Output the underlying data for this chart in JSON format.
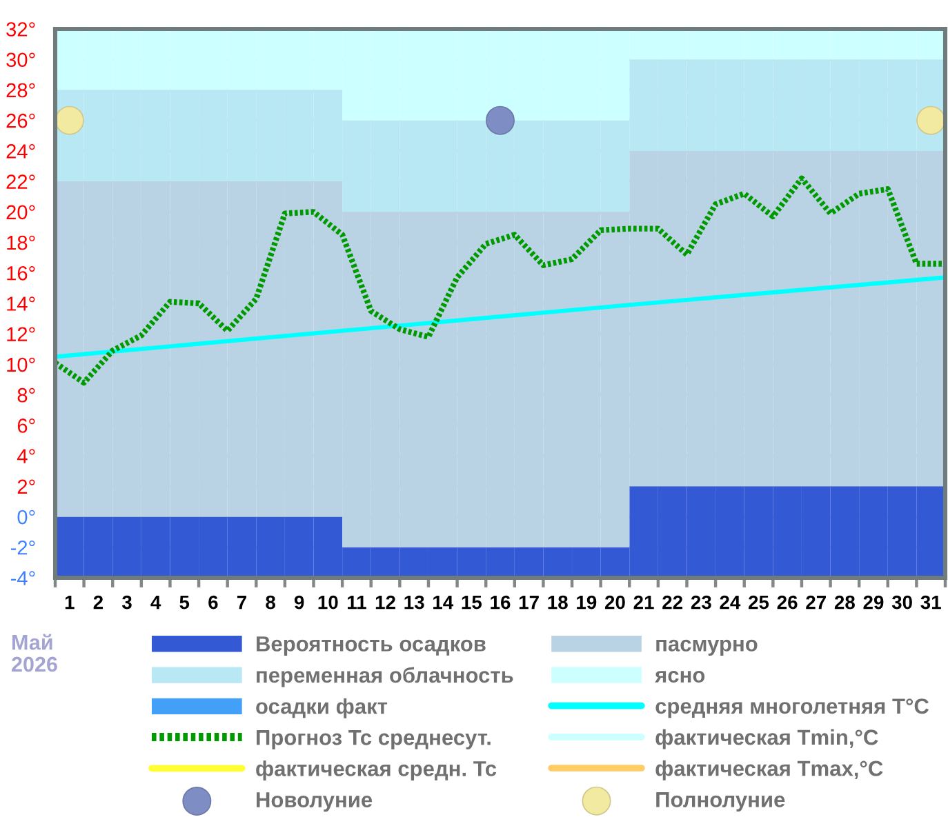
{
  "chart_data": {
    "type": "bar",
    "grid": "y",
    "legend": "bottom",
    "x": [
      1,
      2,
      3,
      4,
      5,
      6,
      7,
      8,
      9,
      10,
      11,
      12,
      13,
      14,
      15,
      16,
      17,
      18,
      19,
      20,
      21,
      22,
      23,
      24,
      25,
      26,
      27,
      28,
      29,
      30,
      31
    ],
    "xlim": [
      0.5,
      31.5
    ],
    "xticks": [
      1,
      2,
      3,
      4,
      5,
      6,
      7,
      8,
      9,
      10,
      11,
      12,
      13,
      14,
      15,
      16,
      17,
      18,
      19,
      20,
      21,
      22,
      23,
      24,
      25,
      26,
      27,
      28,
      29,
      30,
      31,
      {
        "value": 0.5,
        "label": null
      },
      {
        "value": 1.5,
        "label": null
      },
      {
        "value": 2.5,
        "label": null
      },
      {
        "value": 3.5,
        "label": null
      },
      {
        "value": 4.5,
        "label": null
      },
      {
        "value": 5.5,
        "label": null
      },
      {
        "value": 6.5,
        "label": null
      },
      {
        "value": 7.5,
        "label": null
      },
      {
        "value": 8.5,
        "label": null
      },
      {
        "value": 9.5,
        "label": null
      },
      {
        "value": 10.5,
        "label": null
      },
      {
        "value": 11.5,
        "label": null
      },
      {
        "value": 12.5,
        "label": null
      },
      {
        "value": 13.5,
        "label": null
      },
      {
        "value": 14.5,
        "label": null
      },
      {
        "value": 15.5,
        "label": null
      },
      {
        "value": 16.5,
        "label": null
      },
      {
        "value": 17.5,
        "label": null
      },
      {
        "value": 18.5,
        "label": null
      },
      {
        "value": 19.5,
        "label": null
      },
      {
        "value": 20.5,
        "label": null
      },
      {
        "value": 21.5,
        "label": null
      },
      {
        "value": 22.5,
        "label": null
      },
      {
        "value": 23.5,
        "label": null
      },
      {
        "value": 24.5,
        "label": null
      },
      {
        "value": 25.5,
        "label": null
      },
      {
        "value": 26.5,
        "label": null
      },
      {
        "value": 27.5,
        "label": null
      },
      {
        "value": 28.5,
        "label": null
      },
      {
        "value": 29.5,
        "label": null
      },
      {
        "value": 30.5,
        "label": null
      },
      {
        "value": 31.5,
        "label": null
      }
    ],
    "ylim": [
      -4,
      32
    ],
    "yticks": [
      {
        "value": -4,
        "label": "-4°"
      },
      {
        "value": -2,
        "label": "-2°"
      },
      {
        "value": 0,
        "label": "0°"
      },
      {
        "value": 2,
        "label": "2°"
      },
      {
        "value": 4,
        "label": "4°"
      },
      {
        "value": 6,
        "label": "6°"
      },
      {
        "value": 8,
        "label": "8°"
      },
      {
        "value": 10,
        "label": "10°"
      },
      {
        "value": 12,
        "label": "12°"
      },
      {
        "value": 14,
        "label": "14°"
      },
      {
        "value": 16,
        "label": "16°"
      },
      {
        "value": 18,
        "label": "18°"
      },
      {
        "value": 20,
        "label": "20°"
      },
      {
        "value": 22,
        "label": "22°"
      },
      {
        "value": 24,
        "label": "24°"
      },
      {
        "value": 26,
        "label": "26°"
      },
      {
        "value": 28,
        "label": "28°"
      },
      {
        "value": 30,
        "label": "30°"
      },
      {
        "value": 32,
        "label": "32°"
      }
    ],
    "series": [
      {
        "name": "Вероятность осадков",
        "color": "#3459d5",
        "base": [
          -4,
          -4,
          -4,
          -4,
          -4,
          -4,
          -4,
          -4,
          -4,
          -4,
          -4,
          -4,
          -4,
          -4,
          -4,
          -4,
          -4,
          -4,
          -4,
          -4,
          -4,
          -4,
          -4,
          -4,
          -4,
          -4,
          -4,
          -4,
          -4,
          -4,
          -4
        ],
        "values": [
          4,
          4,
          4,
          4,
          4,
          4,
          4,
          4,
          4,
          4,
          2,
          2,
          2,
          2,
          2,
          2,
          2,
          2,
          2,
          2,
          6,
          6,
          6,
          6,
          6,
          6,
          6,
          6,
          6,
          6,
          6
        ]
      },
      {
        "name": "пасмурно",
        "color": "#b9d3e5",
        "base": [
          0,
          0,
          0,
          0,
          0,
          0,
          0,
          0,
          0,
          0,
          -2,
          -2,
          -2,
          -2,
          -2,
          -2,
          -2,
          -2,
          -2,
          -2,
          2,
          2,
          2,
          2,
          2,
          2,
          2,
          2,
          2,
          2,
          2
        ],
        "values": [
          22,
          22,
          22,
          22,
          22,
          22,
          22,
          22,
          22,
          22,
          22,
          22,
          22,
          22,
          22,
          22,
          22,
          22,
          22,
          22,
          22,
          22,
          22,
          22,
          22,
          22,
          22,
          22,
          22,
          22,
          22
        ]
      },
      {
        "name": "переменная облачность",
        "color": "#b9e8f5",
        "base": [
          22,
          22,
          22,
          22,
          22,
          22,
          22,
          22,
          22,
          22,
          20,
          20,
          20,
          20,
          20,
          20,
          20,
          20,
          20,
          20,
          24,
          24,
          24,
          24,
          24,
          24,
          24,
          24,
          24,
          24,
          24
        ],
        "values": [
          6,
          6,
          6,
          6,
          6,
          6,
          6,
          6,
          6,
          6,
          6,
          6,
          6,
          6,
          6,
          6,
          6,
          6,
          6,
          6,
          6,
          6,
          6,
          6,
          6,
          6,
          6,
          6,
          6,
          6,
          6
        ]
      },
      {
        "name": "ясно",
        "color": "#ccffff",
        "base": [
          28,
          28,
          28,
          28,
          28,
          28,
          28,
          28,
          28,
          28,
          26,
          26,
          26,
          26,
          26,
          26,
          26,
          26,
          26,
          26,
          30,
          30,
          30,
          30,
          30,
          30,
          30,
          30,
          30,
          30,
          30
        ],
        "values": [
          4,
          4,
          4,
          4,
          4,
          4,
          4,
          4,
          4,
          4,
          6,
          6,
          6,
          6,
          6,
          6,
          6,
          6,
          6,
          6,
          2,
          2,
          2,
          2,
          2,
          2,
          2,
          2,
          2,
          2,
          2
        ]
      },
      {
        "name": "осадки факт",
        "color": "#42a0f8",
        "values": [
          null,
          null,
          null,
          null,
          null,
          null,
          null,
          null,
          null,
          null,
          null,
          null,
          null,
          null,
          null,
          null,
          null,
          null,
          null,
          null,
          null,
          null,
          null,
          null,
          null,
          null,
          null,
          null,
          null,
          null,
          null
        ]
      },
      {
        "name": "средняя многолетняя T°C",
        "type": "line",
        "color": "#00ffff",
        "line_style": "solid",
        "x": [
          0.5,
          10.5,
          20.5,
          31.5
        ],
        "values": [
          10.5,
          12.2,
          13.9,
          15.7
        ]
      },
      {
        "name": "Прогноз Тс среднесут.",
        "type": "line",
        "color": "#009a00",
        "line_style": "dotted",
        "x": [
          0.5,
          1.5,
          2.5,
          3.5,
          4.5,
          5.5,
          6.5,
          7.5,
          8.5,
          9.5,
          10.5,
          11.5,
          12.5,
          13.5,
          14.5,
          15.5,
          16.5,
          17.5,
          18.5,
          19.5,
          20.5,
          21.5,
          22.5,
          23.5,
          24.5,
          25.5,
          26.5,
          27.5,
          28.5,
          29.5,
          30.5,
          31.5
        ],
        "values": [
          10.1,
          8.8,
          10.9,
          11.9,
          14.1,
          14.0,
          12.2,
          14.3,
          19.9,
          20.0,
          18.5,
          13.5,
          12.3,
          11.8,
          15.7,
          17.9,
          18.5,
          16.5,
          16.9,
          18.8,
          18.9,
          18.9,
          17.2,
          20.5,
          21.2,
          19.7,
          22.2,
          19.9,
          21.2,
          21.5,
          16.6,
          16.6
        ]
      },
      {
        "name": "фактическая Tmin,°C",
        "type": "line",
        "color": "#ccffff",
        "line_style": "solid",
        "values": [
          null,
          null,
          null,
          null,
          null,
          null,
          null,
          null,
          null,
          null,
          null,
          null,
          null,
          null,
          null,
          null,
          null,
          null,
          null,
          null,
          null,
          null,
          null,
          null,
          null,
          null,
          null,
          null,
          null,
          null,
          null
        ]
      },
      {
        "name": "фактическая средн. Тс",
        "type": "line",
        "color": "#ffff33",
        "line_style": "solid",
        "values": [
          null,
          null,
          null,
          null,
          null,
          null,
          null,
          null,
          null,
          null,
          null,
          null,
          null,
          null,
          null,
          null,
          null,
          null,
          null,
          null,
          null,
          null,
          null,
          null,
          null,
          null,
          null,
          null,
          null,
          null,
          null
        ]
      },
      {
        "name": "фактическая Tmax,°C",
        "type": "line",
        "color": "#ffcc66",
        "line_style": "solid",
        "values": [
          null,
          null,
          null,
          null,
          null,
          null,
          null,
          null,
          null,
          null,
          null,
          null,
          null,
          null,
          null,
          null,
          null,
          null,
          null,
          null,
          null,
          null,
          null,
          null,
          null,
          null,
          null,
          null,
          null,
          null,
          null
        ]
      },
      {
        "name": "Новолуние",
        "type": "scatter",
        "color": "#7e8ec4",
        "marker": "circle",
        "x": [
          16
        ],
        "values": [
          26
        ]
      },
      {
        "name": "Полнолуние",
        "type": "scatter",
        "color": "#f3eaa2",
        "marker": "circle",
        "x": [
          1,
          31
        ],
        "values": [
          26,
          26
        ]
      }
    ],
    "annotations": [
      "Май\n2026"
    ]
  }
}
